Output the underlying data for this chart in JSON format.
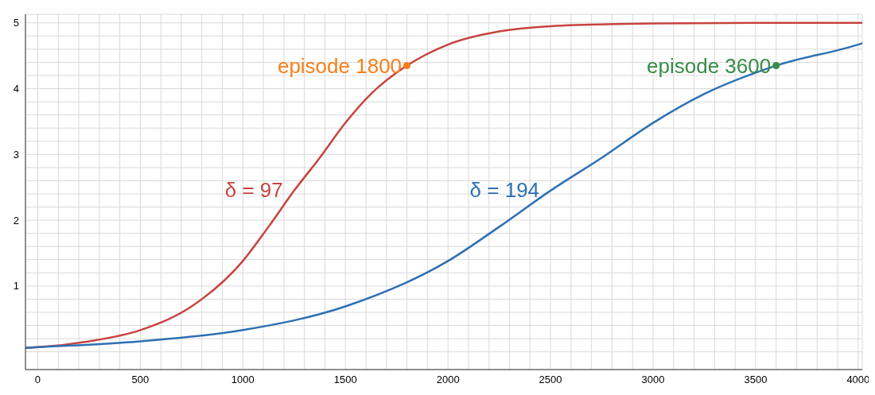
{
  "chart_data": {
    "type": "line",
    "series": [
      {
        "name": "δ = 97",
        "color": "#c74440",
        "marker": "none",
        "x": [
          -60,
          0,
          250,
          500,
          750,
          1000,
          1125,
          1250,
          1375,
          1500,
          1625,
          1800,
          2000,
          2250,
          2500,
          3000,
          3500,
          4020
        ],
        "values": [
          0.06,
          0.07,
          0.16,
          0.33,
          0.69,
          1.38,
          1.9,
          2.45,
          2.95,
          3.48,
          3.92,
          4.35,
          4.67,
          4.87,
          4.95,
          4.99,
          5,
          5
        ]
      },
      {
        "name": "δ = 194",
        "color": "#2d70b3",
        "marker": "none",
        "x": [
          -60,
          0,
          500,
          1000,
          1500,
          2000,
          2250,
          2500,
          2750,
          3000,
          3250,
          3600,
          4000,
          4020
        ],
        "values": [
          0.06,
          0.07,
          0.16,
          0.33,
          0.69,
          1.38,
          1.9,
          2.45,
          2.95,
          3.48,
          3.92,
          4.35,
          4.67,
          4.69
        ]
      },
      {
        "name": "episode 1800",
        "type": "scatter",
        "marker": "circle",
        "color": "#fa7e19",
        "x": [
          1800
        ],
        "values": [
          4.35
        ]
      },
      {
        "name": "episode 3600",
        "type": "scatter",
        "marker": "circle",
        "color": "#388c46",
        "x": [
          3600
        ],
        "values": [
          4.35
        ]
      }
    ],
    "xlim": [
      -60,
      4020
    ],
    "ylim": [
      -0.27,
      5.13
    ],
    "xticks": [
      0,
      {
        "value": 100,
        "label": null
      },
      {
        "value": 200,
        "label": null
      },
      {
        "value": 300,
        "label": null
      },
      {
        "value": 400,
        "label": null
      },
      500,
      {
        "value": 600,
        "label": null
      },
      {
        "value": 700,
        "label": null
      },
      {
        "value": 800,
        "label": null
      },
      {
        "value": 900,
        "label": null
      },
      1000,
      {
        "value": 1100,
        "label": null
      },
      {
        "value": 1200,
        "label": null
      },
      {
        "value": 1300,
        "label": null
      },
      {
        "value": 1400,
        "label": null
      },
      1500,
      {
        "value": 1600,
        "label": null
      },
      {
        "value": 1700,
        "label": null
      },
      {
        "value": 1800,
        "label": null
      },
      {
        "value": 1900,
        "label": null
      },
      2000,
      {
        "value": 2100,
        "label": null
      },
      {
        "value": 2200,
        "label": null
      },
      {
        "value": 2300,
        "label": null
      },
      {
        "value": 2400,
        "label": null
      },
      2500,
      {
        "value": 2600,
        "label": null
      },
      {
        "value": 2700,
        "label": null
      },
      {
        "value": 2800,
        "label": null
      },
      {
        "value": 2900,
        "label": null
      },
      3000,
      {
        "value": 3100,
        "label": null
      },
      {
        "value": 3200,
        "label": null
      },
      {
        "value": 3300,
        "label": null
      },
      {
        "value": 3400,
        "label": null
      },
      3500,
      {
        "value": 3600,
        "label": null
      },
      {
        "value": 3700,
        "label": null
      },
      {
        "value": 3800,
        "label": null
      },
      {
        "value": 3900,
        "label": null
      },
      4000
    ],
    "yticks": [
      {
        "value": 0,
        "label": null
      },
      {
        "value": 0.2,
        "label": null
      },
      {
        "value": 0.4,
        "label": null
      },
      {
        "value": 0.6,
        "label": null
      },
      {
        "value": 0.8,
        "label": null
      },
      1,
      {
        "value": 1.2,
        "label": null
      },
      {
        "value": 1.4,
        "label": null
      },
      {
        "value": 1.6,
        "label": null
      },
      {
        "value": 1.8,
        "label": null
      },
      2,
      {
        "value": 2.2,
        "label": null
      },
      {
        "value": 2.4,
        "label": null
      },
      {
        "value": 2.6,
        "label": null
      },
      {
        "value": 2.8,
        "label": null
      },
      3,
      {
        "value": 3.2,
        "label": null
      },
      {
        "value": 3.4,
        "label": null
      },
      {
        "value": 3.6,
        "label": null
      },
      {
        "value": 3.8,
        "label": null
      },
      4,
      {
        "value": 4.2,
        "label": null
      },
      {
        "value": 4.4,
        "label": null
      },
      {
        "value": 4.6,
        "label": null
      },
      {
        "value": 4.8,
        "label": null
      },
      5
    ],
    "grid": true,
    "line_style": "solid",
    "legend": false
  }
}
